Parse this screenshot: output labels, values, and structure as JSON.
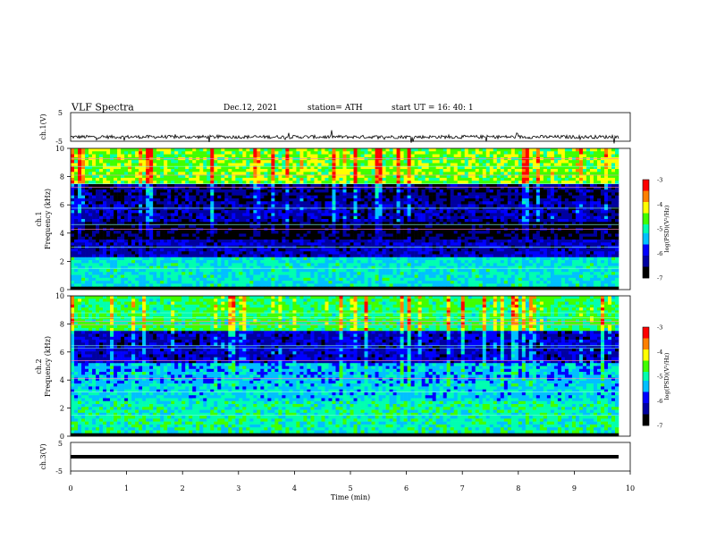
{
  "header": {
    "title": "VLF  Spectra",
    "date": "Dec.12, 2021",
    "station": "station= ATH",
    "start": "start  UT  =    16: 40: 1"
  },
  "colors": {
    "background": "#ffffff",
    "trace": "#000000",
    "colormap": [
      "#000000",
      "#0000a0",
      "#0000ff",
      "#00c0ff",
      "#00ffb0",
      "#40ff00",
      "#ffff00",
      "#ff8000",
      "#ff0000",
      "#ffffff"
    ]
  },
  "chart_data": [
    {
      "type": "line",
      "ylabel": "ch.1(V)",
      "ylim": [
        -5,
        5
      ],
      "yticks": [
        "5",
        "-5"
      ],
      "xlim": [
        0,
        10
      ],
      "series": [
        {
          "values_description": "noisy trace near -3.5 V with spikes",
          "level": -3.5
        }
      ]
    },
    {
      "type": "heatmap",
      "ylabel_channel": "ch.1",
      "ylabel": "Frequency  (kHz)",
      "ylim": [
        0,
        10
      ],
      "yticks": [
        "0",
        "2",
        "4",
        "6",
        "8",
        "10"
      ],
      "xlim": [
        0,
        10
      ],
      "colorbar": {
        "label": "log(PSD)(V²/Hz)",
        "range": [
          -7,
          -3
        ],
        "ticks": [
          "-3",
          "-4",
          "-5",
          "-6",
          "-7"
        ]
      },
      "dominant_bands_khz": [
        {
          "low": 0,
          "high": 0.3,
          "level": -7
        },
        {
          "low": 0.3,
          "high": 2.2,
          "level": -5.2
        },
        {
          "low": 2.2,
          "high": 3.5,
          "level": -6.2
        },
        {
          "low": 3.5,
          "high": 4.8,
          "level": -6.8
        },
        {
          "low": 4.8,
          "high": 6.2,
          "level": -6.3
        },
        {
          "low": 6.2,
          "high": 7.5,
          "level": -6.5
        },
        {
          "low": 7.5,
          "high": 10,
          "level": -4.5
        }
      ]
    },
    {
      "type": "heatmap",
      "ylabel_channel": "ch.2",
      "ylabel": "Frequency  (kHz)",
      "ylim": [
        0,
        10
      ],
      "yticks": [
        "0",
        "2",
        "4",
        "6",
        "8",
        "10"
      ],
      "xlim": [
        0,
        10
      ],
      "colorbar": {
        "label": "log(PSD)(V²/Hz)",
        "range": [
          -7,
          -3
        ],
        "ticks": [
          "-3",
          "-4",
          "-5",
          "-6",
          "-7"
        ]
      },
      "dominant_bands_khz": [
        {
          "low": 0,
          "high": 0.3,
          "level": -7
        },
        {
          "low": 0.3,
          "high": 2.5,
          "level": -5
        },
        {
          "low": 2.5,
          "high": 3.8,
          "level": -5.3
        },
        {
          "low": 3.8,
          "high": 5.2,
          "level": -5.5
        },
        {
          "low": 5.2,
          "high": 7.5,
          "level": -6.2
        },
        {
          "low": 7.5,
          "high": 10,
          "level": -4.8
        }
      ]
    },
    {
      "type": "line",
      "ylabel": "ch.3(V)",
      "ylim": [
        -5,
        5
      ],
      "yticks": [
        "5",
        "-5"
      ],
      "xlim": [
        0,
        10
      ],
      "xlabel": "Time  (min)",
      "xticks": [
        "0",
        "1",
        "2",
        "3",
        "4",
        "5",
        "6",
        "7",
        "8",
        "9",
        "10"
      ],
      "series": [
        {
          "values_description": "flat thick line",
          "level": 0
        }
      ]
    }
  ]
}
